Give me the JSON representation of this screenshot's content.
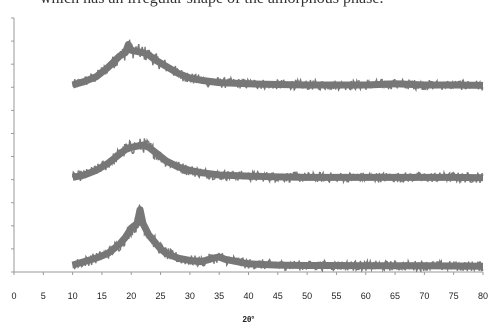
{
  "caption_fragment": "which has an irregular shape of the amorphous phase.",
  "chart_data": {
    "type": "line",
    "xlabel": "2θ°",
    "ylabel": "",
    "xlim": [
      0,
      80
    ],
    "x_ticks": [
      "0",
      "5",
      "10",
      "15",
      "20",
      "25",
      "30",
      "35",
      "40",
      "45",
      "50",
      "55",
      "60",
      "65",
      "70",
      "75",
      "80"
    ],
    "ylim": [
      0,
      11
    ],
    "grid": false,
    "legend": "none",
    "line_color": "#777777",
    "series": [
      {
        "x": [
          10,
          12,
          14,
          16,
          17,
          18,
          19,
          19.5,
          20,
          21,
          22,
          23,
          24,
          26,
          28,
          30,
          32,
          35,
          40,
          45,
          50,
          55,
          60,
          65,
          70,
          75,
          80
        ],
        "values": [
          8.1,
          8.25,
          8.45,
          8.85,
          9.1,
          9.35,
          9.5,
          9.85,
          9.6,
          9.55,
          9.5,
          9.4,
          9.2,
          8.9,
          8.6,
          8.4,
          8.3,
          8.2,
          8.15,
          8.12,
          8.1,
          8.1,
          8.1,
          8.15,
          8.1,
          8.1,
          8.08
        ]
      },
      {
        "x": [
          10,
          12,
          14,
          16,
          17,
          18,
          19,
          20,
          21,
          22,
          23,
          24,
          25,
          26,
          28,
          30,
          32,
          35,
          40,
          45,
          50,
          55,
          60,
          65,
          70,
          75,
          80
        ],
        "values": [
          4.1,
          4.2,
          4.4,
          4.7,
          4.9,
          5.1,
          5.3,
          5.4,
          5.45,
          5.5,
          5.4,
          5.2,
          5.0,
          4.8,
          4.55,
          4.4,
          4.3,
          4.2,
          4.15,
          4.12,
          4.1,
          4.1,
          4.1,
          4.1,
          4.1,
          4.1,
          4.08
        ]
      },
      {
        "x": [
          10,
          12,
          14,
          16,
          17,
          18,
          19,
          20,
          21,
          21.5,
          22,
          23,
          24,
          25,
          26,
          28,
          30,
          32,
          34,
          35,
          36,
          38,
          40,
          45,
          50,
          55,
          60,
          65,
          70,
          75,
          80
        ],
        "values": [
          0.3,
          0.45,
          0.6,
          0.8,
          1.0,
          1.2,
          1.5,
          1.9,
          2.1,
          2.7,
          2.1,
          1.6,
          1.3,
          1.0,
          0.8,
          0.6,
          0.5,
          0.45,
          0.6,
          0.65,
          0.55,
          0.45,
          0.35,
          0.3,
          0.28,
          0.28,
          0.27,
          0.27,
          0.27,
          0.26,
          0.25
        ]
      }
    ]
  }
}
